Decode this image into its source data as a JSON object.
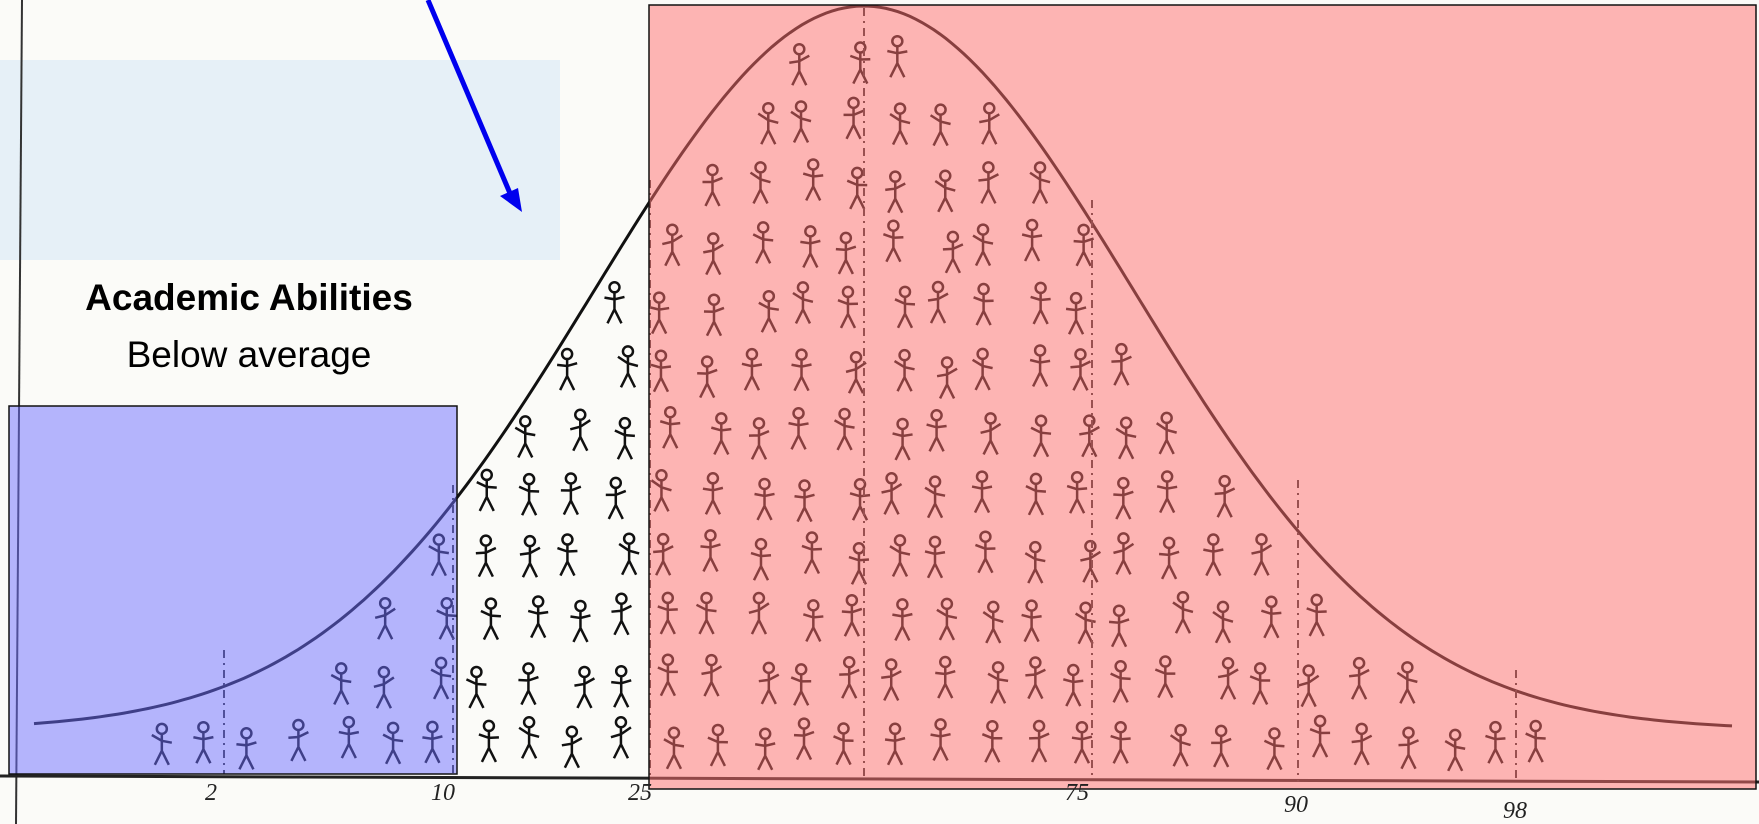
{
  "label": {
    "title": "Academic Abilities",
    "subtitle": "Below average"
  },
  "axis": {
    "labels": [
      "2",
      "10",
      "25",
      "75",
      "90",
      "98"
    ]
  }
}
